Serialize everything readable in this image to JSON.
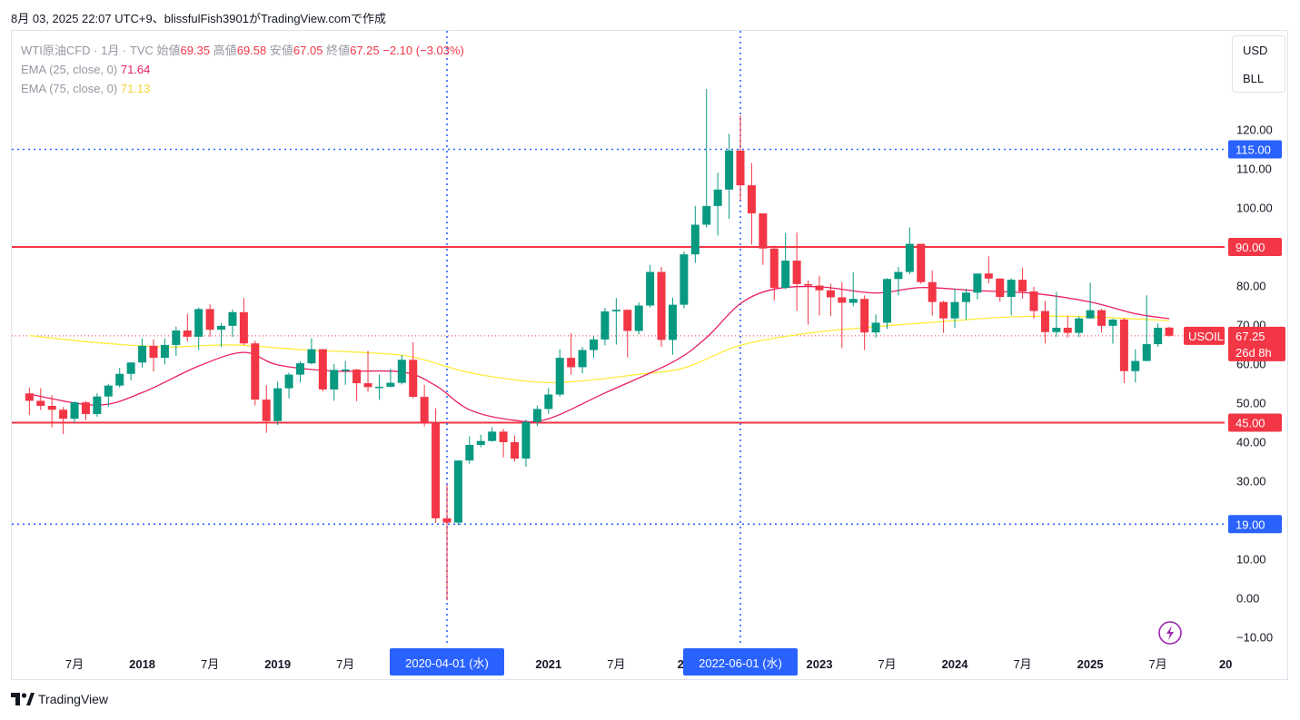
{
  "header": {
    "caption": "8月 03, 2025 22:07 UTC+9、blissfulFish3901がTradingView.comで作成"
  },
  "legend": {
    "symbol_line_prefix": "WTI原油CFD · 1月 · TVC",
    "open_label": "始値",
    "open_value": "69.35",
    "high_label": "高値",
    "high_value": "69.58",
    "low_label": "安値",
    "low_value": "67.05",
    "close_label": "終値",
    "close_value": "67.25",
    "change": "−2.10 (−3.03%)",
    "ema25_label": "EMA (25, close, 0)",
    "ema25_value": "71.64",
    "ema75_label": "EMA (75, close, 0)",
    "ema75_value": "71.13"
  },
  "unit_menu": {
    "currency": "USD",
    "unit": "BLL"
  },
  "footer": {
    "brand": "TradingView"
  },
  "colors": {
    "up": "#089981",
    "down": "#f23645",
    "ema25": "#e91e63",
    "ema75": "#ffeb3b",
    "hline_red": "#f23645",
    "hline_blue": "#2962ff",
    "axis_text": "#131722"
  },
  "chart_data": {
    "type": "candlestick",
    "symbol": "USOIL",
    "interval": "1M",
    "y_axis": {
      "ticks": [
        120,
        110,
        100,
        90,
        80,
        70,
        60,
        50,
        40,
        30,
        20,
        10,
        0,
        -10
      ],
      "tick_labels": [
        "120.00",
        "110.00",
        "100.00",
        "90.00",
        "80.00",
        "70.00",
        "60.00",
        "50.00",
        "40.00",
        "30.00",
        "20.00",
        "10.00",
        "0.00",
        "−10.00"
      ],
      "ylim": [
        -12,
        130
      ]
    },
    "x_axis": {
      "labels": [
        {
          "text": "7月",
          "date": "2017-07"
        },
        {
          "text": "2018",
          "date": "2018-01"
        },
        {
          "text": "7月",
          "date": "2018-07"
        },
        {
          "text": "2019",
          "date": "2019-01"
        },
        {
          "text": "7月",
          "date": "2019-07"
        },
        {
          "text": "2021",
          "date": "2021-01"
        },
        {
          "text": "7月",
          "date": "2021-07"
        },
        {
          "text": "20",
          "date": "2022-01"
        },
        {
          "text": "2023",
          "date": "2023-01"
        },
        {
          "text": "7月",
          "date": "2023-07"
        },
        {
          "text": "2024",
          "date": "2024-01"
        },
        {
          "text": "7月",
          "date": "2024-07"
        },
        {
          "text": "2025",
          "date": "2025-01"
        },
        {
          "text": "7月",
          "date": "2025-07"
        },
        {
          "text": "20",
          "date": "2026-01"
        }
      ],
      "crosshair_labels": [
        {
          "text": "2020-04-01 (水)",
          "date": "2020-04"
        },
        {
          "text": "2022-06-01 (水)",
          "date": "2022-06"
        }
      ]
    },
    "horizontal_lines": [
      {
        "value": 115,
        "label": "115.00",
        "style": "dotted",
        "color": "blue"
      },
      {
        "value": 90,
        "label": "90.00",
        "style": "solid",
        "color": "red"
      },
      {
        "value": 45,
        "label": "45.00",
        "style": "solid",
        "color": "red"
      },
      {
        "value": 19,
        "label": "19.00",
        "style": "dotted",
        "color": "blue"
      }
    ],
    "last_price": {
      "label": "USOIL",
      "value": "67.25",
      "countdown": "26d 8h"
    },
    "candles": [
      {
        "d": "2017-03",
        "o": 52.5,
        "h": 54.0,
        "l": 47.0,
        "c": 50.6
      },
      {
        "d": "2017-04",
        "o": 50.6,
        "h": 53.8,
        "l": 48.2,
        "c": 49.3
      },
      {
        "d": "2017-05",
        "o": 49.3,
        "h": 52.0,
        "l": 43.8,
        "c": 48.3
      },
      {
        "d": "2017-06",
        "o": 48.3,
        "h": 49.0,
        "l": 42.1,
        "c": 46.0
      },
      {
        "d": "2017-07",
        "o": 46.0,
        "h": 50.5,
        "l": 45.0,
        "c": 50.2
      },
      {
        "d": "2017-08",
        "o": 50.2,
        "h": 50.5,
        "l": 45.6,
        "c": 47.2
      },
      {
        "d": "2017-09",
        "o": 47.2,
        "h": 52.5,
        "l": 46.5,
        "c": 51.7
      },
      {
        "d": "2017-10",
        "o": 51.7,
        "h": 54.9,
        "l": 49.1,
        "c": 54.5
      },
      {
        "d": "2017-11",
        "o": 54.5,
        "h": 59.0,
        "l": 54.0,
        "c": 57.5
      },
      {
        "d": "2017-12",
        "o": 57.5,
        "h": 60.5,
        "l": 55.8,
        "c": 60.4
      },
      {
        "d": "2018-01",
        "o": 60.4,
        "h": 66.6,
        "l": 59.1,
        "c": 64.7
      },
      {
        "d": "2018-02",
        "o": 64.7,
        "h": 66.3,
        "l": 58.1,
        "c": 61.6
      },
      {
        "d": "2018-03",
        "o": 61.6,
        "h": 66.6,
        "l": 59.9,
        "c": 64.9
      },
      {
        "d": "2018-04",
        "o": 64.9,
        "h": 69.6,
        "l": 62.1,
        "c": 68.6
      },
      {
        "d": "2018-05",
        "o": 68.6,
        "h": 72.9,
        "l": 65.8,
        "c": 67.0
      },
      {
        "d": "2018-06",
        "o": 67.0,
        "h": 74.5,
        "l": 63.6,
        "c": 74.1
      },
      {
        "d": "2018-07",
        "o": 74.1,
        "h": 75.3,
        "l": 67.0,
        "c": 68.8
      },
      {
        "d": "2018-08",
        "o": 68.8,
        "h": 70.5,
        "l": 64.4,
        "c": 69.8
      },
      {
        "d": "2018-09",
        "o": 69.8,
        "h": 74.0,
        "l": 67.0,
        "c": 73.3
      },
      {
        "d": "2018-10",
        "o": 73.3,
        "h": 76.9,
        "l": 64.9,
        "c": 65.3
      },
      {
        "d": "2018-11",
        "o": 65.3,
        "h": 66.0,
        "l": 49.4,
        "c": 50.9
      },
      {
        "d": "2018-12",
        "o": 50.9,
        "h": 54.6,
        "l": 42.4,
        "c": 45.4
      },
      {
        "d": "2019-01",
        "o": 45.4,
        "h": 55.5,
        "l": 44.4,
        "c": 53.8
      },
      {
        "d": "2019-02",
        "o": 53.8,
        "h": 57.8,
        "l": 51.2,
        "c": 57.3
      },
      {
        "d": "2019-03",
        "o": 57.3,
        "h": 60.7,
        "l": 55.3,
        "c": 60.2
      },
      {
        "d": "2019-04",
        "o": 60.2,
        "h": 66.6,
        "l": 59.9,
        "c": 63.8
      },
      {
        "d": "2019-05",
        "o": 63.8,
        "h": 63.9,
        "l": 53.0,
        "c": 53.5
      },
      {
        "d": "2019-06",
        "o": 53.5,
        "h": 60.0,
        "l": 50.6,
        "c": 58.5
      },
      {
        "d": "2019-07",
        "o": 58.5,
        "h": 60.8,
        "l": 54.7,
        "c": 58.6
      },
      {
        "d": "2019-08",
        "o": 58.6,
        "h": 58.8,
        "l": 50.5,
        "c": 55.1
      },
      {
        "d": "2019-09",
        "o": 55.1,
        "h": 63.4,
        "l": 52.9,
        "c": 54.1
      },
      {
        "d": "2019-10",
        "o": 54.1,
        "h": 57.3,
        "l": 50.9,
        "c": 54.2
      },
      {
        "d": "2019-11",
        "o": 54.2,
        "h": 58.8,
        "l": 54.0,
        "c": 55.2
      },
      {
        "d": "2019-12",
        "o": 55.2,
        "h": 62.3,
        "l": 54.8,
        "c": 61.1
      },
      {
        "d": "2020-01",
        "o": 61.1,
        "h": 65.6,
        "l": 51.3,
        "c": 51.6
      },
      {
        "d": "2020-02",
        "o": 51.6,
        "h": 54.7,
        "l": 44.0,
        "c": 44.8
      },
      {
        "d": "2020-03",
        "o": 44.8,
        "h": 48.7,
        "l": 19.3,
        "c": 20.5
      },
      {
        "d": "2020-04",
        "o": 20.5,
        "h": 29.1,
        "l": -0.5,
        "c": 19.4
      },
      {
        "d": "2020-05",
        "o": 19.4,
        "h": 35.3,
        "l": 18.8,
        "c": 35.3
      },
      {
        "d": "2020-06",
        "o": 35.3,
        "h": 41.5,
        "l": 34.5,
        "c": 39.3
      },
      {
        "d": "2020-07",
        "o": 39.3,
        "h": 41.9,
        "l": 38.7,
        "c": 40.3
      },
      {
        "d": "2020-08",
        "o": 40.3,
        "h": 43.8,
        "l": 40.1,
        "c": 42.7
      },
      {
        "d": "2020-09",
        "o": 42.7,
        "h": 43.4,
        "l": 36.1,
        "c": 40.0
      },
      {
        "d": "2020-10",
        "o": 40.0,
        "h": 41.7,
        "l": 35.0,
        "c": 35.8
      },
      {
        "d": "2020-11",
        "o": 35.8,
        "h": 45.8,
        "l": 33.7,
        "c": 45.2
      },
      {
        "d": "2020-12",
        "o": 45.2,
        "h": 49.4,
        "l": 44.1,
        "c": 48.5
      },
      {
        "d": "2021-01",
        "o": 48.5,
        "h": 53.9,
        "l": 47.3,
        "c": 52.2
      },
      {
        "d": "2021-02",
        "o": 52.2,
        "h": 63.8,
        "l": 51.6,
        "c": 61.6
      },
      {
        "d": "2021-03",
        "o": 61.6,
        "h": 67.9,
        "l": 57.3,
        "c": 59.2
      },
      {
        "d": "2021-04",
        "o": 59.2,
        "h": 64.4,
        "l": 57.6,
        "c": 63.6
      },
      {
        "d": "2021-05",
        "o": 63.6,
        "h": 67.1,
        "l": 61.6,
        "c": 66.3
      },
      {
        "d": "2021-06",
        "o": 66.3,
        "h": 74.4,
        "l": 64.8,
        "c": 73.5
      },
      {
        "d": "2021-07",
        "o": 73.5,
        "h": 76.9,
        "l": 65.0,
        "c": 73.9
      },
      {
        "d": "2021-08",
        "o": 73.9,
        "h": 74.0,
        "l": 61.7,
        "c": 68.5
      },
      {
        "d": "2021-09",
        "o": 68.5,
        "h": 75.8,
        "l": 67.6,
        "c": 75.0
      },
      {
        "d": "2021-10",
        "o": 75.0,
        "h": 85.4,
        "l": 74.5,
        "c": 83.6
      },
      {
        "d": "2021-11",
        "o": 83.6,
        "h": 84.9,
        "l": 64.4,
        "c": 66.2
      },
      {
        "d": "2021-12",
        "o": 66.2,
        "h": 77.0,
        "l": 62.4,
        "c": 75.2
      },
      {
        "d": "2022-01",
        "o": 75.2,
        "h": 88.8,
        "l": 74.3,
        "c": 88.1
      },
      {
        "d": "2022-02",
        "o": 88.1,
        "h": 100.5,
        "l": 85.9,
        "c": 95.7
      },
      {
        "d": "2022-03",
        "o": 95.7,
        "h": 130.5,
        "l": 95.0,
        "c": 100.5
      },
      {
        "d": "2022-04",
        "o": 100.5,
        "h": 109.0,
        "l": 92.9,
        "c": 104.7
      },
      {
        "d": "2022-05",
        "o": 104.7,
        "h": 119.0,
        "l": 97.2,
        "c": 114.7
      },
      {
        "d": "2022-06",
        "o": 114.7,
        "h": 123.7,
        "l": 101.9,
        "c": 105.8
      },
      {
        "d": "2022-07",
        "o": 105.8,
        "h": 111.5,
        "l": 90.6,
        "c": 98.6
      },
      {
        "d": "2022-08",
        "o": 98.6,
        "h": 98.0,
        "l": 85.4,
        "c": 89.6
      },
      {
        "d": "2022-09",
        "o": 89.6,
        "h": 90.4,
        "l": 76.3,
        "c": 79.5
      },
      {
        "d": "2022-10",
        "o": 79.5,
        "h": 93.6,
        "l": 79.2,
        "c": 86.5
      },
      {
        "d": "2022-11",
        "o": 86.5,
        "h": 93.7,
        "l": 73.6,
        "c": 80.5
      },
      {
        "d": "2022-12",
        "o": 80.5,
        "h": 81.4,
        "l": 70.1,
        "c": 80.1
      },
      {
        "d": "2023-01",
        "o": 80.1,
        "h": 82.6,
        "l": 72.5,
        "c": 78.9
      },
      {
        "d": "2023-02",
        "o": 78.9,
        "h": 80.6,
        "l": 72.3,
        "c": 77.1
      },
      {
        "d": "2023-03",
        "o": 77.1,
        "h": 81.0,
        "l": 64.1,
        "c": 75.7
      },
      {
        "d": "2023-04",
        "o": 75.7,
        "h": 83.5,
        "l": 74.8,
        "c": 76.7
      },
      {
        "d": "2023-05",
        "o": 76.7,
        "h": 77.6,
        "l": 63.6,
        "c": 68.1
      },
      {
        "d": "2023-06",
        "o": 68.1,
        "h": 72.7,
        "l": 66.8,
        "c": 70.6
      },
      {
        "d": "2023-07",
        "o": 70.6,
        "h": 82.0,
        "l": 69.0,
        "c": 81.8
      },
      {
        "d": "2023-08",
        "o": 81.8,
        "h": 84.9,
        "l": 77.6,
        "c": 83.6
      },
      {
        "d": "2023-09",
        "o": 83.6,
        "h": 95.0,
        "l": 83.0,
        "c": 90.8
      },
      {
        "d": "2023-10",
        "o": 90.8,
        "h": 89.8,
        "l": 80.6,
        "c": 81.0
      },
      {
        "d": "2023-11",
        "o": 81.0,
        "h": 84.0,
        "l": 72.4,
        "c": 75.9
      },
      {
        "d": "2023-12",
        "o": 75.9,
        "h": 76.2,
        "l": 68.0,
        "c": 71.7
      },
      {
        "d": "2024-01",
        "o": 71.7,
        "h": 79.3,
        "l": 69.3,
        "c": 75.9
      },
      {
        "d": "2024-02",
        "o": 75.9,
        "h": 79.3,
        "l": 71.4,
        "c": 78.3
      },
      {
        "d": "2024-03",
        "o": 78.3,
        "h": 83.1,
        "l": 76.6,
        "c": 83.2
      },
      {
        "d": "2024-04",
        "o": 83.2,
        "h": 87.6,
        "l": 80.7,
        "c": 81.9
      },
      {
        "d": "2024-05",
        "o": 81.9,
        "h": 82.0,
        "l": 76.0,
        "c": 77.2
      },
      {
        "d": "2024-06",
        "o": 77.2,
        "h": 82.0,
        "l": 72.5,
        "c": 81.6
      },
      {
        "d": "2024-07",
        "o": 81.6,
        "h": 84.7,
        "l": 76.8,
        "c": 78.6
      },
      {
        "d": "2024-08",
        "o": 78.6,
        "h": 79.8,
        "l": 71.7,
        "c": 73.6
      },
      {
        "d": "2024-09",
        "o": 73.6,
        "h": 76.2,
        "l": 65.3,
        "c": 68.2
      },
      {
        "d": "2024-10",
        "o": 68.2,
        "h": 78.5,
        "l": 67.0,
        "c": 69.3
      },
      {
        "d": "2024-11",
        "o": 69.3,
        "h": 72.4,
        "l": 66.8,
        "c": 68.0
      },
      {
        "d": "2024-12",
        "o": 68.0,
        "h": 72.2,
        "l": 66.9,
        "c": 71.7
      },
      {
        "d": "2025-01",
        "o": 71.7,
        "h": 80.8,
        "l": 71.6,
        "c": 73.8
      },
      {
        "d": "2025-02",
        "o": 73.8,
        "h": 74.2,
        "l": 68.1,
        "c": 69.8
      },
      {
        "d": "2025-03",
        "o": 69.8,
        "h": 71.6,
        "l": 65.2,
        "c": 71.4
      },
      {
        "d": "2025-04",
        "o": 71.4,
        "h": 71.8,
        "l": 55.1,
        "c": 58.2
      },
      {
        "d": "2025-05",
        "o": 58.2,
        "h": 63.8,
        "l": 55.3,
        "c": 60.8
      },
      {
        "d": "2025-06",
        "o": 60.8,
        "h": 77.6,
        "l": 60.7,
        "c": 65.1
      },
      {
        "d": "2025-07",
        "o": 65.1,
        "h": 70.4,
        "l": 64.4,
        "c": 69.3
      },
      {
        "d": "2025-08",
        "o": 69.35,
        "h": 69.58,
        "l": 67.05,
        "c": 67.25
      }
    ],
    "ema25": [
      {
        "d": "2017-03",
        "v": 52.3
      },
      {
        "d": "2017-09",
        "v": 49.5
      },
      {
        "d": "2018-01",
        "v": 52.7
      },
      {
        "d": "2018-06",
        "v": 59.5
      },
      {
        "d": "2018-10",
        "v": 63.0
      },
      {
        "d": "2019-01",
        "v": 59.8
      },
      {
        "d": "2019-06",
        "v": 58.2
      },
      {
        "d": "2019-12",
        "v": 58.0
      },
      {
        "d": "2020-03",
        "v": 54.5
      },
      {
        "d": "2020-06",
        "v": 48.3
      },
      {
        "d": "2020-10",
        "v": 45.6
      },
      {
        "d": "2021-01",
        "v": 46.0
      },
      {
        "d": "2021-06",
        "v": 52.6
      },
      {
        "d": "2021-12",
        "v": 60.5
      },
      {
        "d": "2022-03",
        "v": 66.8
      },
      {
        "d": "2022-06",
        "v": 75.5
      },
      {
        "d": "2022-09",
        "v": 79.2
      },
      {
        "d": "2023-01",
        "v": 79.8
      },
      {
        "d": "2023-06",
        "v": 78.2
      },
      {
        "d": "2023-10",
        "v": 79.6
      },
      {
        "d": "2024-03",
        "v": 78.8
      },
      {
        "d": "2024-08",
        "v": 78.1
      },
      {
        "d": "2025-01",
        "v": 75.9
      },
      {
        "d": "2025-05",
        "v": 72.9
      },
      {
        "d": "2025-08",
        "v": 71.64
      }
    ],
    "ema75": [
      {
        "d": "2017-03",
        "v": 67.3
      },
      {
        "d": "2017-09",
        "v": 65.5
      },
      {
        "d": "2018-03",
        "v": 64.4
      },
      {
        "d": "2018-09",
        "v": 64.9
      },
      {
        "d": "2019-03",
        "v": 63.7
      },
      {
        "d": "2019-09",
        "v": 62.9
      },
      {
        "d": "2020-01",
        "v": 61.8
      },
      {
        "d": "2020-06",
        "v": 57.8
      },
      {
        "d": "2020-12",
        "v": 55.4
      },
      {
        "d": "2021-04",
        "v": 55.7
      },
      {
        "d": "2021-09",
        "v": 57.4
      },
      {
        "d": "2022-01",
        "v": 59.0
      },
      {
        "d": "2022-06",
        "v": 64.8
      },
      {
        "d": "2022-12",
        "v": 67.9
      },
      {
        "d": "2023-06",
        "v": 69.6
      },
      {
        "d": "2023-12",
        "v": 70.9
      },
      {
        "d": "2024-06",
        "v": 72.1
      },
      {
        "d": "2024-12",
        "v": 72.2
      },
      {
        "d": "2025-08",
        "v": 71.13
      }
    ]
  }
}
